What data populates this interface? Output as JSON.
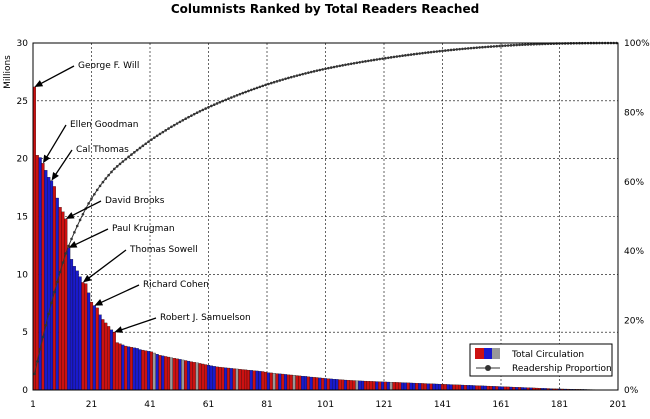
{
  "chart_data": {
    "type": "bar",
    "title": "Columnists Ranked by Total Readers Reached",
    "ylabel": "Millions",
    "ylim": [
      0,
      30
    ],
    "y_ticks": [
      0,
      5,
      10,
      15,
      20,
      25,
      30
    ],
    "y2_ticks": [
      "0%",
      "20%",
      "40%",
      "60%",
      "80%",
      "100%"
    ],
    "x_ticks": [
      1,
      21,
      41,
      61,
      81,
      101,
      121,
      141,
      161,
      181,
      201
    ],
    "xlim": [
      1,
      201
    ],
    "grid": true,
    "legend_position": "bottom-right",
    "legend": [
      {
        "label": "Total Circulation"
      },
      {
        "label": "Readership Proportion"
      }
    ],
    "colors": {
      "red": "#cc1111",
      "blue": "#1a1acc",
      "gray": "#999999",
      "line": "#333333"
    },
    "annotations": [
      {
        "text": "George F. Will",
        "rank": 1,
        "value": 26.2
      },
      {
        "text": "Ellen Goodman",
        "rank": 4,
        "value": 19.6
      },
      {
        "text": "Cal Thomas",
        "rank": 7,
        "value": 18.1
      },
      {
        "text": "David Brooks",
        "rank": 12,
        "value": 14.8
      },
      {
        "text": "Paul Krugman",
        "rank": 13,
        "value": 12.3
      },
      {
        "text": "Thomas Sowell",
        "rank": 18,
        "value": 9.3
      },
      {
        "text": "Richard Cohen",
        "rank": 22,
        "value": 7.3
      },
      {
        "text": "Robert J. Samuelson",
        "rank": 29,
        "value": 5.0
      }
    ],
    "values": [
      26.2,
      20.3,
      20.1,
      19.6,
      19.0,
      18.4,
      18.1,
      17.6,
      16.6,
      15.8,
      15.4,
      14.8,
      12.3,
      11.3,
      10.7,
      10.3,
      9.8,
      9.3,
      9.2,
      8.4,
      7.6,
      7.3,
      7.1,
      6.5,
      6.1,
      5.8,
      5.5,
      5.2,
      5.0,
      4.1,
      4.0,
      3.9,
      3.8,
      3.75,
      3.7,
      3.65,
      3.6,
      3.5,
      3.45,
      3.4,
      3.35,
      3.3,
      3.2,
      3.1,
      3.0,
      2.95,
      2.9,
      2.85,
      2.8,
      2.75,
      2.7,
      2.65,
      2.6,
      2.55,
      2.5,
      2.45,
      2.4,
      2.35,
      2.3,
      2.25,
      2.2,
      2.15,
      2.1,
      2.05,
      2.0,
      1.98,
      1.95,
      1.92,
      1.9,
      1.87,
      1.85,
      1.82,
      1.8,
      1.77,
      1.75,
      1.72,
      1.7,
      1.67,
      1.65,
      1.62,
      1.6,
      1.55,
      1.5,
      1.48,
      1.45,
      1.42,
      1.4,
      1.38,
      1.35,
      1.32,
      1.3,
      1.28,
      1.25,
      1.22,
      1.2,
      1.18,
      1.15,
      1.12,
      1.1,
      1.08,
      1.05,
      1.03,
      1.0,
      0.98,
      0.96,
      0.94,
      0.92,
      0.9,
      0.88,
      0.86,
      0.85,
      0.83,
      0.82,
      0.8,
      0.79,
      0.78,
      0.77,
      0.76,
      0.75,
      0.74,
      0.73,
      0.72,
      0.71,
      0.7,
      0.69,
      0.68,
      0.67,
      0.66,
      0.65,
      0.64,
      0.63,
      0.62,
      0.61,
      0.6,
      0.59,
      0.58,
      0.57,
      0.56,
      0.55,
      0.54,
      0.53,
      0.52,
      0.51,
      0.5,
      0.49,
      0.48,
      0.47,
      0.46,
      0.45,
      0.44,
      0.43,
      0.42,
      0.41,
      0.4,
      0.39,
      0.38,
      0.37,
      0.36,
      0.35,
      0.34,
      0.33,
      0.32,
      0.31,
      0.3,
      0.29,
      0.28,
      0.27,
      0.26,
      0.25,
      0.24,
      0.23,
      0.22,
      0.21,
      0.2,
      0.19,
      0.18,
      0.17,
      0.16,
      0.15,
      0.14,
      0.13,
      0.12,
      0.11,
      0.1,
      0.095,
      0.09,
      0.085,
      0.08,
      0.075,
      0.07,
      0.065,
      0.06,
      0.055,
      0.05,
      0.045,
      0.04,
      0.035,
      0.03,
      0.025,
      0.02,
      0.018,
      0.015,
      0.012,
      0.01,
      0.008
    ],
    "bar_colors": [
      "red",
      "red",
      "blue",
      "red",
      "blue",
      "blue",
      "blue",
      "red",
      "blue",
      "red",
      "red",
      "red",
      "blue",
      "blue",
      "blue",
      "blue",
      "blue",
      "red",
      "red",
      "blue",
      "red",
      "blue",
      "red",
      "blue",
      "red",
      "red",
      "red",
      "blue",
      "red",
      "red",
      "red",
      "blue",
      "red",
      "blue",
      "red",
      "blue",
      "blue",
      "blue",
      "red",
      "red",
      "blue",
      "red",
      "gray",
      "blue",
      "red",
      "blue",
      "red",
      "red",
      "gray",
      "red",
      "red",
      "blue",
      "gray",
      "red",
      "blue",
      "red",
      "red",
      "gray",
      "red",
      "red",
      "red",
      "blue",
      "blue",
      "blue",
      "red",
      "red",
      "red",
      "blue",
      "red",
      "blue",
      "red",
      "gray",
      "red",
      "red",
      "red",
      "red",
      "blue",
      "red",
      "blue",
      "blue",
      "red",
      "red",
      "blue",
      "red",
      "gray",
      "red",
      "blue",
      "red",
      "blue",
      "red",
      "red",
      "gray",
      "red",
      "red",
      "blue",
      "blue",
      "red",
      "blue",
      "red",
      "red",
      "blue",
      "red",
      "blue",
      "red",
      "blue",
      "blue",
      "blue",
      "red",
      "red",
      "blue",
      "red",
      "red",
      "red",
      "gray",
      "blue",
      "blue",
      "red",
      "red",
      "red",
      "red",
      "blue",
      "red",
      "blue",
      "red",
      "blue",
      "gray",
      "red",
      "red",
      "red",
      "blue",
      "blue",
      "red",
      "blue",
      "blue",
      "red",
      "blue",
      "red",
      "red",
      "blue",
      "red",
      "blue",
      "blue",
      "blue",
      "red",
      "red",
      "blue",
      "blue",
      "red",
      "red",
      "red",
      "blue",
      "red",
      "blue",
      "blue",
      "blue",
      "red",
      "red",
      "blue",
      "blue",
      "red",
      "red",
      "blue",
      "red",
      "blue",
      "blue",
      "red",
      "red",
      "blue",
      "red",
      "blue",
      "red",
      "blue",
      "blue",
      "red",
      "blue",
      "red",
      "red",
      "red",
      "blue",
      "blue",
      "red",
      "blue",
      "red",
      "red",
      "blue",
      "red",
      "blue",
      "red",
      "blue",
      "blue",
      "red",
      "red",
      "blue",
      "blue",
      "red",
      "red",
      "blue",
      "red",
      "blue"
    ]
  }
}
